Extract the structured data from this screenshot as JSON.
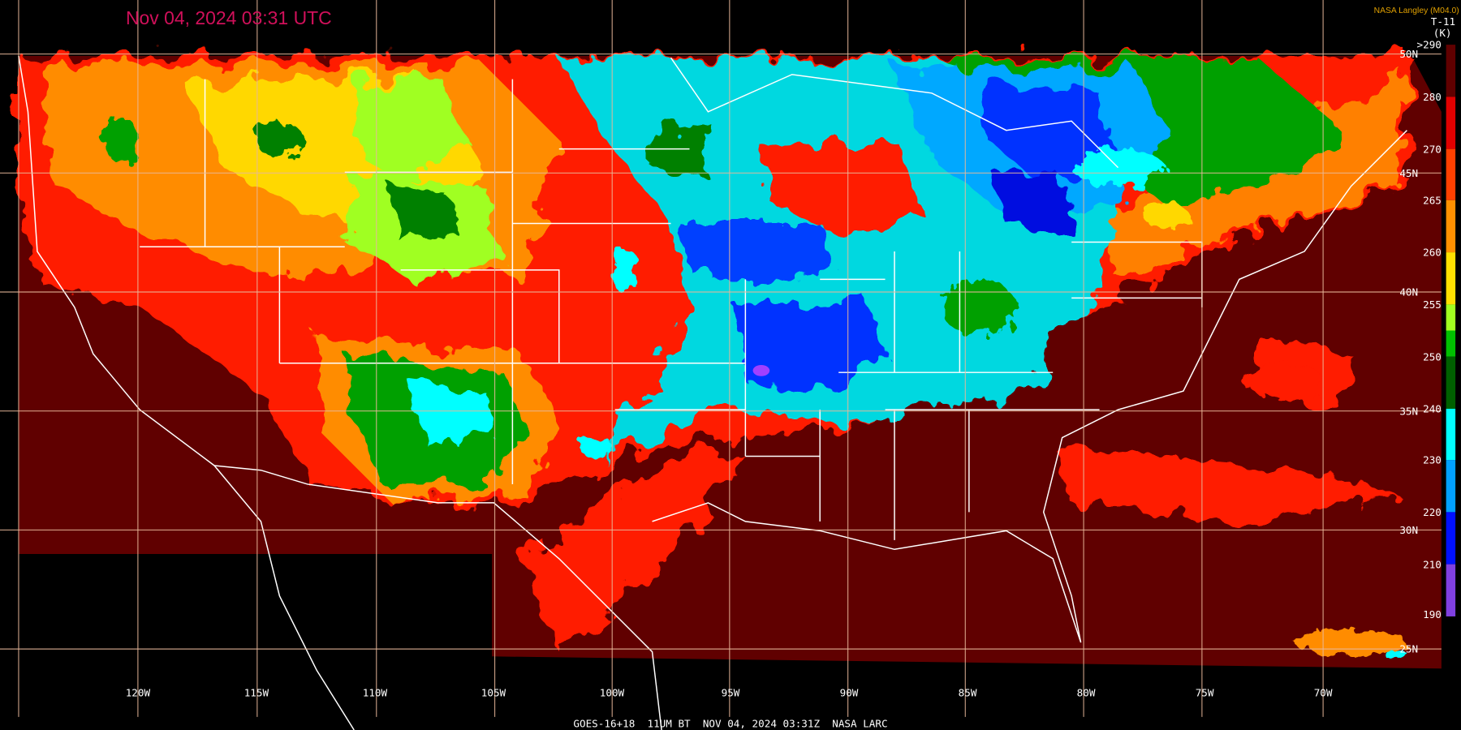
{
  "header": {
    "title": "Nov 04, 2024 03:31 UTC",
    "credit": "NASA Langley (M04.0)",
    "band": "T-11",
    "unit": "(K)"
  },
  "colorbar": {
    "labels": [
      ">290",
      "280",
      "270",
      "265",
      "260",
      "255",
      "250",
      "240",
      "230",
      "220",
      "210",
      "190"
    ]
  },
  "longitudes": [
    "120W",
    "115W",
    "110W",
    "105W",
    "100W",
    "95W",
    "90W",
    "85W",
    "80W",
    "75W",
    "70W"
  ],
  "latitudes": [
    "50N",
    "45N",
    "40N",
    "35N",
    "30N",
    "25N"
  ],
  "footer": "GOES-16+18  11UM BT  NOV 04, 2024 03:31Z  NASA LARC"
}
